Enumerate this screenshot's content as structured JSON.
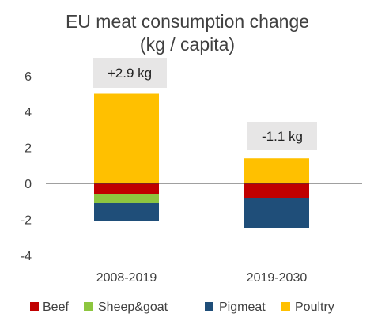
{
  "chart_data": {
    "type": "bar",
    "stacked": true,
    "title": "EU meat consumption change",
    "subtitle": "(kg / capita)",
    "xlabel": "",
    "ylabel": "",
    "categories": [
      "2008-2019",
      "2019-2030"
    ],
    "ylim": [
      -4,
      6
    ],
    "yticks": [
      -4,
      -2,
      0,
      2,
      4,
      6
    ],
    "grid": false,
    "legend_position": "bottom",
    "series": [
      {
        "name": "Beef",
        "color": "#c00000",
        "values": [
          -0.6,
          -0.8
        ]
      },
      {
        "name": "Sheep&goat",
        "color": "#8dc63f",
        "values": [
          -0.5,
          0.0
        ]
      },
      {
        "name": "Pigmeat",
        "color": "#1f4e79",
        "values": [
          -1.0,
          -1.7
        ]
      },
      {
        "name": "Poultry",
        "color": "#ffc000",
        "values": [
          5.0,
          1.4
        ]
      }
    ],
    "annotations": [
      {
        "category": "2008-2019",
        "text": "+2.9 kg"
      },
      {
        "category": "2019-2030",
        "text": "-1.1 kg"
      }
    ],
    "annotation_box_color": "#e7e6e6"
  }
}
